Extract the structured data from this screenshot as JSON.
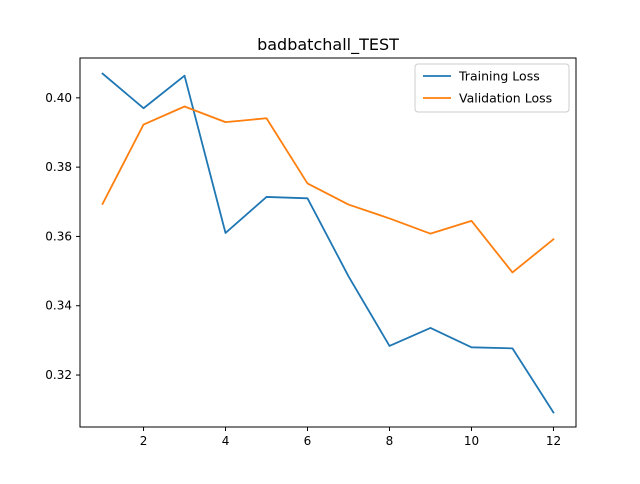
{
  "chart_data": {
    "type": "line",
    "title": "badbatchall_TEST",
    "xlabel": "",
    "ylabel": "",
    "x": [
      1,
      2,
      3,
      4,
      5,
      6,
      7,
      8,
      9,
      10,
      11,
      12
    ],
    "xlim": [
      0.45,
      12.55
    ],
    "ylim": [
      0.305,
      0.4115
    ],
    "xticks": [
      2,
      4,
      6,
      8,
      10,
      12
    ],
    "yticks": [
      0.32,
      0.34,
      0.36,
      0.38,
      0.4
    ],
    "ytick_labels": [
      "0.32",
      "0.34",
      "0.36",
      "0.38",
      "0.40"
    ],
    "grid": false,
    "legend_position": "top-right",
    "series": [
      {
        "name": "Training Loss",
        "color": "#1f77b4",
        "values": [
          0.407,
          0.397,
          0.4064,
          0.361,
          0.3714,
          0.371,
          0.3485,
          0.3284,
          0.3336,
          0.328,
          0.3277,
          0.3092
        ]
      },
      {
        "name": "Validation Loss",
        "color": "#ff7f0e",
        "values": [
          0.3694,
          0.3923,
          0.3975,
          0.393,
          0.3941,
          0.3753,
          0.3692,
          0.3652,
          0.3608,
          0.3645,
          0.3496,
          0.3592
        ]
      }
    ]
  }
}
